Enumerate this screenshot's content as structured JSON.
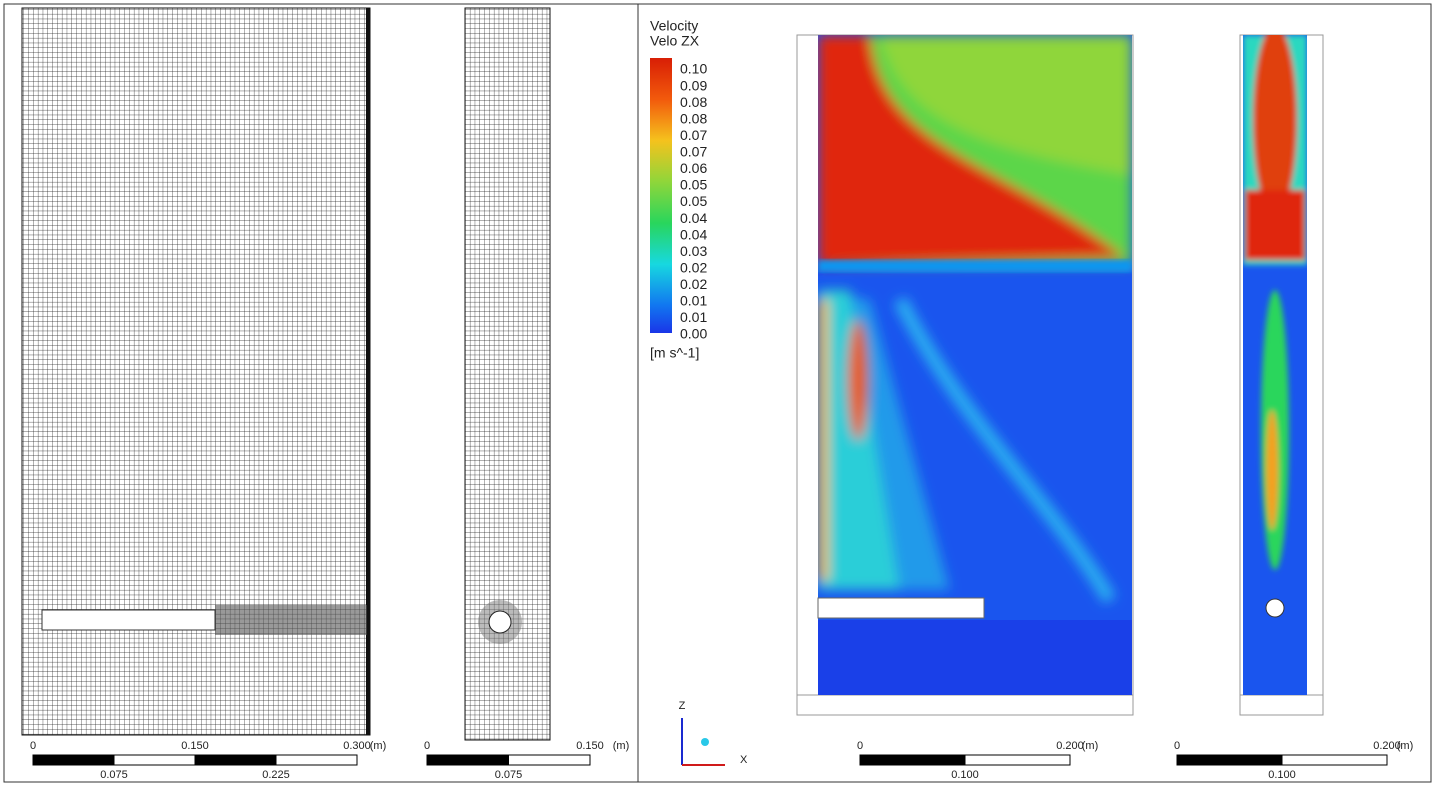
{
  "legend": {
    "title": "Velocity",
    "variable": "Velo ZX",
    "labels": [
      "0.10",
      "0.09",
      "0.08",
      "0.08",
      "0.07",
      "0.07",
      "0.06",
      "0.05",
      "0.05",
      "0.04",
      "0.04",
      "0.03",
      "0.02",
      "0.02",
      "0.01",
      "0.01",
      "0.00"
    ],
    "unit": "[m s^-1]"
  },
  "scale_bars": [
    {
      "top_labels": [
        "0",
        "0.150",
        "0.300"
      ],
      "bottom_labels": [
        "0.075",
        "0.225"
      ],
      "unit": "(m)"
    },
    {
      "top_labels": [
        "0",
        "0.150"
      ],
      "bottom_labels": [
        "0.075"
      ],
      "unit": "(m)"
    },
    {
      "top_labels": [
        "0",
        "0.200"
      ],
      "bottom_labels": [
        "0.100"
      ],
      "unit": "(m)"
    },
    {
      "top_labels": [
        "0",
        "0.200"
      ],
      "bottom_labels": [
        "0.100"
      ],
      "unit": "(m)"
    }
  ],
  "axes": {
    "z": "Z",
    "x": "X"
  }
}
